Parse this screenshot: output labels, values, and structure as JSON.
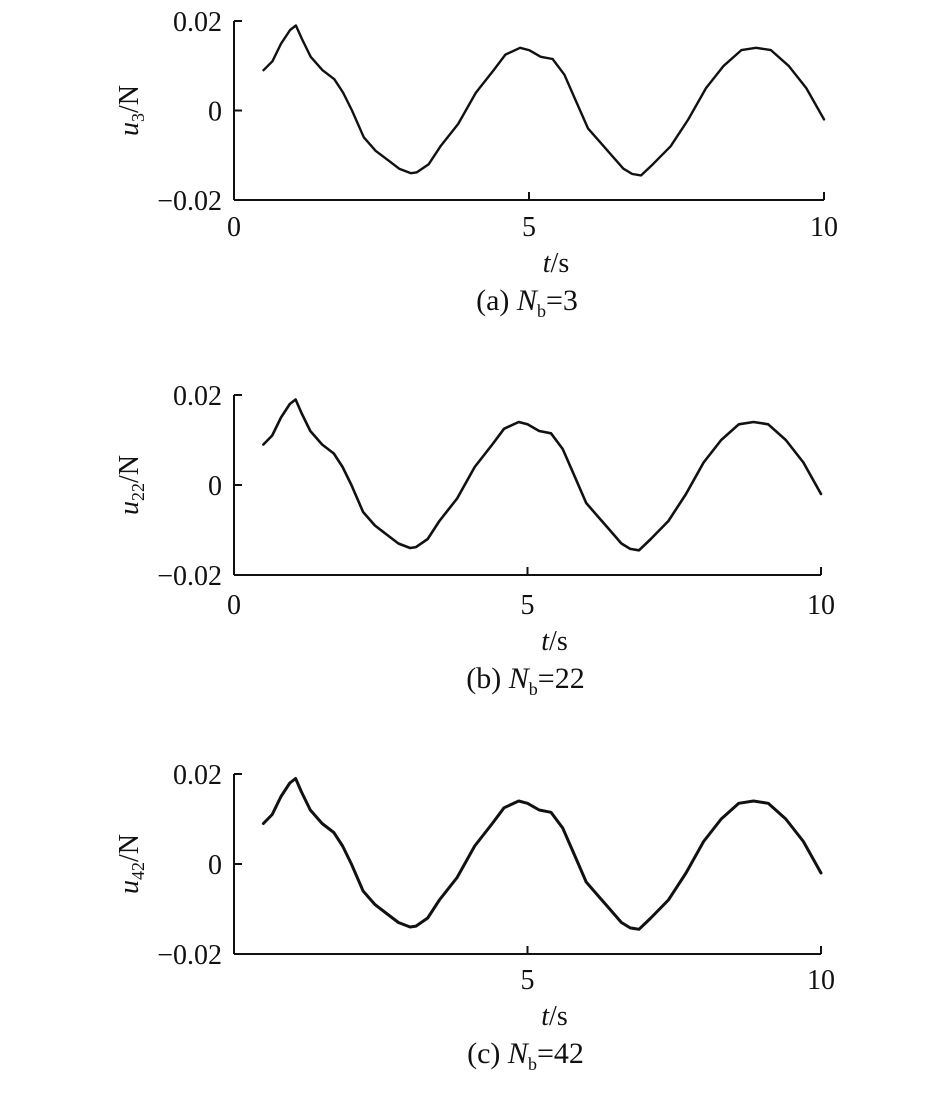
{
  "figure": {
    "panels": [
      {
        "caption_prefix": "(a) ",
        "caption_var": "N",
        "caption_sub": "b",
        "caption_suffix": "=3",
        "y_var": "u",
        "y_sub": "3",
        "y_unit": "/N",
        "x_var": "t",
        "x_unit": "/s"
      },
      {
        "caption_prefix": "(b) ",
        "caption_var": "N",
        "caption_sub": "b",
        "caption_suffix": "=22",
        "y_var": "u",
        "y_sub": "22",
        "y_unit": "/N",
        "x_var": "t",
        "x_unit": "/s"
      },
      {
        "caption_prefix": "(c) ",
        "caption_var": "N",
        "caption_sub": "b",
        "caption_suffix": "=42",
        "y_var": "u",
        "y_sub": "42",
        "y_unit": "/N",
        "x_var": "t",
        "x_unit": "/s"
      }
    ]
  },
  "chart_data": [
    {
      "type": "line",
      "title": "(a) Nb=3",
      "xlabel": "t/s",
      "ylabel": "u3/N",
      "xlim": [
        0,
        10
      ],
      "ylim": [
        -0.02,
        0.02
      ],
      "xticks": [
        0,
        5,
        10
      ],
      "xtick_labels": [
        "0",
        "5",
        "10"
      ],
      "yticks": [
        0.02,
        0,
        -0.02
      ],
      "ytick_labels": [
        "0.02",
        "0",
        "−0.02"
      ],
      "grid": false,
      "line_color": "#111111",
      "line_width": 2.4,
      "series": [
        {
          "x": [
            0.5,
            0.65,
            0.8,
            0.95,
            1.05,
            1.15,
            1.3,
            1.5,
            1.7,
            1.85,
            2.0,
            2.2,
            2.4,
            2.6,
            2.8,
            3.0,
            3.1,
            3.3,
            3.5,
            3.8,
            4.1,
            4.4,
            4.6,
            4.85,
            5.0,
            5.2,
            5.4,
            5.6,
            5.8,
            6.0,
            6.2,
            6.4,
            6.6,
            6.75,
            6.9,
            7.1,
            7.4,
            7.7,
            8.0,
            8.3,
            8.6,
            8.85,
            9.1,
            9.4,
            9.7,
            10.0
          ],
          "y": [
            0.009,
            0.011,
            0.015,
            0.018,
            0.019,
            0.016,
            0.012,
            0.009,
            0.007,
            0.004,
            0.0,
            -0.006,
            -0.009,
            -0.011,
            -0.013,
            -0.014,
            -0.0138,
            -0.012,
            -0.008,
            -0.003,
            0.004,
            0.009,
            0.0125,
            0.014,
            0.0135,
            0.012,
            0.0115,
            0.008,
            0.002,
            -0.004,
            -0.007,
            -0.01,
            -0.013,
            -0.0142,
            -0.0145,
            -0.012,
            -0.008,
            -0.002,
            0.005,
            0.01,
            0.0135,
            0.014,
            0.0135,
            0.01,
            0.005,
            -0.002
          ]
        }
      ]
    },
    {
      "type": "line",
      "title": "(b) Nb=22",
      "xlabel": "t/s",
      "ylabel": "u22/N",
      "xlim": [
        0,
        10
      ],
      "ylim": [
        -0.02,
        0.02
      ],
      "xticks": [
        0,
        5,
        10
      ],
      "xtick_labels": [
        "0",
        "5",
        "10"
      ],
      "yticks": [
        0.02,
        0,
        -0.02
      ],
      "ytick_labels": [
        "0.02",
        "0",
        "−0.02"
      ],
      "grid": false,
      "line_color": "#111111",
      "line_width": 2.6,
      "series": [
        {
          "x": [
            0.5,
            0.65,
            0.8,
            0.95,
            1.05,
            1.15,
            1.3,
            1.5,
            1.7,
            1.85,
            2.0,
            2.2,
            2.4,
            2.6,
            2.8,
            3.0,
            3.1,
            3.3,
            3.5,
            3.8,
            4.1,
            4.4,
            4.6,
            4.85,
            5.0,
            5.2,
            5.4,
            5.6,
            5.8,
            6.0,
            6.2,
            6.4,
            6.6,
            6.75,
            6.9,
            7.1,
            7.4,
            7.7,
            8.0,
            8.3,
            8.6,
            8.85,
            9.1,
            9.4,
            9.7,
            10.0
          ],
          "y": [
            0.009,
            0.011,
            0.015,
            0.018,
            0.019,
            0.016,
            0.012,
            0.009,
            0.007,
            0.004,
            0.0,
            -0.006,
            -0.009,
            -0.011,
            -0.013,
            -0.014,
            -0.0138,
            -0.012,
            -0.008,
            -0.003,
            0.004,
            0.009,
            0.0125,
            0.014,
            0.0135,
            0.012,
            0.0115,
            0.008,
            0.002,
            -0.004,
            -0.007,
            -0.01,
            -0.013,
            -0.0142,
            -0.0145,
            -0.012,
            -0.008,
            -0.002,
            0.005,
            0.01,
            0.0135,
            0.014,
            0.0135,
            0.01,
            0.005,
            -0.002
          ]
        }
      ]
    },
    {
      "type": "line",
      "title": "(c) Nb=42",
      "xlabel": "t/s",
      "ylabel": "u42/N",
      "xlim": [
        0,
        10
      ],
      "ylim": [
        -0.02,
        0.02
      ],
      "xticks": [
        5,
        10
      ],
      "xtick_labels": [
        "5",
        "10"
      ],
      "yticks": [
        0.02,
        0,
        -0.02
      ],
      "ytick_labels": [
        "0.02",
        "0",
        "−0.02"
      ],
      "grid": false,
      "line_color": "#111111",
      "line_width": 3.0,
      "series": [
        {
          "x": [
            0.5,
            0.65,
            0.8,
            0.95,
            1.05,
            1.15,
            1.3,
            1.5,
            1.7,
            1.85,
            2.0,
            2.2,
            2.4,
            2.6,
            2.8,
            3.0,
            3.1,
            3.3,
            3.5,
            3.8,
            4.1,
            4.4,
            4.6,
            4.85,
            5.0,
            5.2,
            5.4,
            5.6,
            5.8,
            6.0,
            6.2,
            6.4,
            6.6,
            6.75,
            6.9,
            7.1,
            7.4,
            7.7,
            8.0,
            8.3,
            8.6,
            8.85,
            9.1,
            9.4,
            9.7,
            10.0
          ],
          "y": [
            0.009,
            0.011,
            0.015,
            0.018,
            0.019,
            0.016,
            0.012,
            0.009,
            0.007,
            0.004,
            0.0,
            -0.006,
            -0.009,
            -0.011,
            -0.013,
            -0.014,
            -0.0138,
            -0.012,
            -0.008,
            -0.003,
            0.004,
            0.009,
            0.0125,
            0.014,
            0.0135,
            0.012,
            0.0115,
            0.008,
            0.002,
            -0.004,
            -0.007,
            -0.01,
            -0.013,
            -0.0142,
            -0.0145,
            -0.012,
            -0.008,
            -0.002,
            0.005,
            0.01,
            0.0135,
            0.014,
            0.0135,
            0.01,
            0.005,
            -0.002
          ]
        }
      ]
    }
  ]
}
